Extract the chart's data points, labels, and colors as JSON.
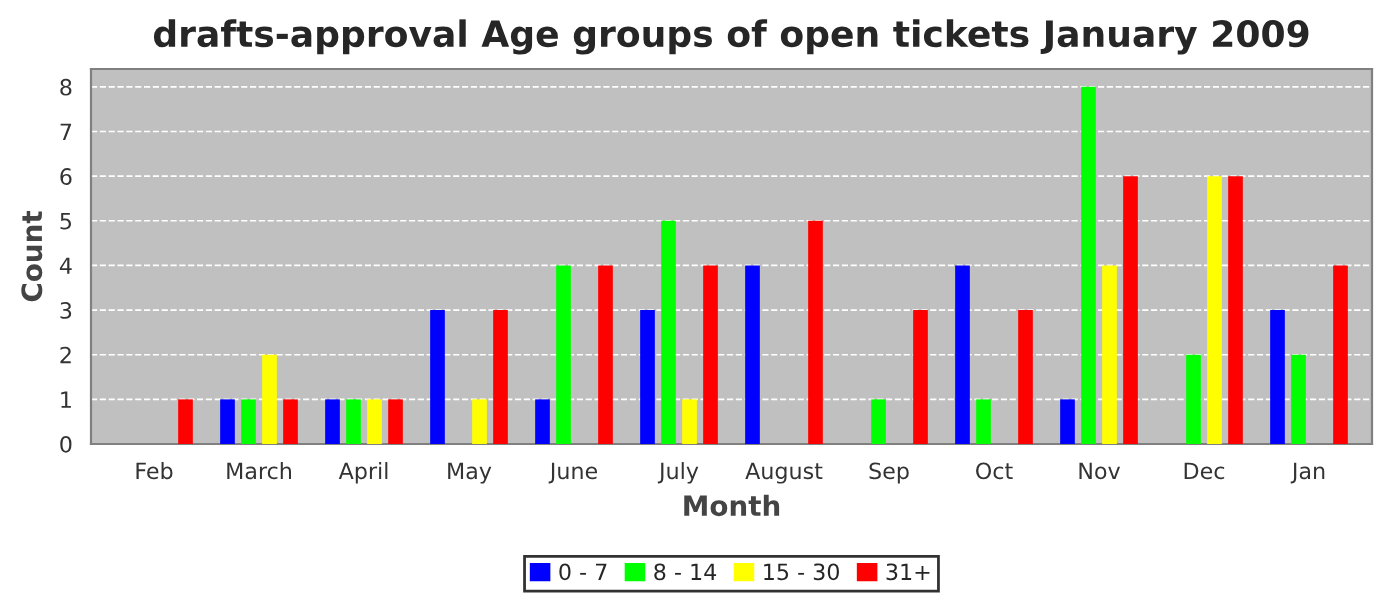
{
  "chart_data": {
    "type": "bar",
    "title": "drafts-approval Age groups of open tickets January 2009",
    "xlabel": "Month",
    "ylabel": "Count",
    "categories": [
      "Feb",
      "March",
      "April",
      "May",
      "June",
      "July",
      "August",
      "Sep",
      "Oct",
      "Nov",
      "Dec",
      "Jan"
    ],
    "series": [
      {
        "name": "0 - 7",
        "color": "#0000ff",
        "values": [
          0,
          1,
          1,
          3,
          1,
          3,
          4,
          0,
          4,
          1,
          0,
          3
        ]
      },
      {
        "name": "8 - 14",
        "color": "#00ff00",
        "values": [
          0,
          1,
          1,
          0,
          4,
          5,
          0,
          1,
          1,
          8,
          2,
          2
        ]
      },
      {
        "name": "15 - 30",
        "color": "#ffff00",
        "values": [
          0,
          2,
          1,
          1,
          0,
          1,
          0,
          0,
          0,
          4,
          6,
          0
        ]
      },
      {
        "name": "31+",
        "color": "#ff0000",
        "values": [
          1,
          1,
          1,
          3,
          4,
          4,
          5,
          3,
          3,
          6,
          6,
          4
        ]
      }
    ],
    "ylim": [
      0,
      8.4
    ],
    "yticks": [
      0,
      1,
      2,
      3,
      4,
      5,
      6,
      7,
      8
    ],
    "grid": "y",
    "legend": "bottom"
  }
}
